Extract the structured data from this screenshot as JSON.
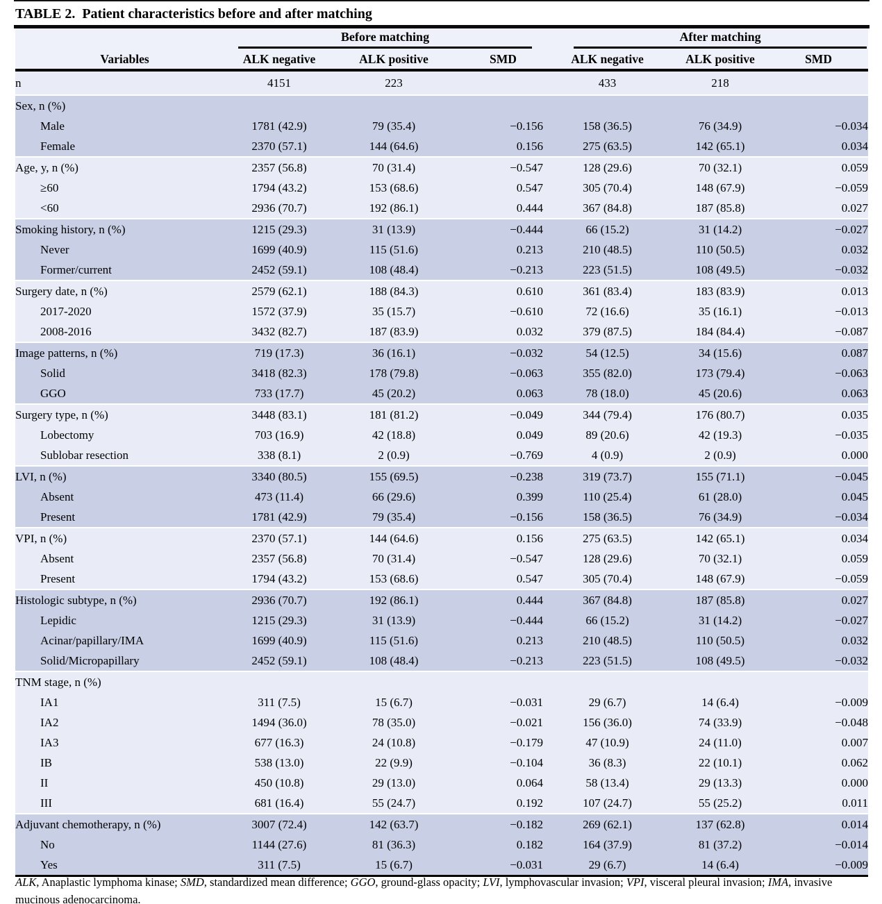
{
  "title": {
    "label": "TABLE 2.",
    "text": "Patient characteristics before and after matching"
  },
  "header": {
    "variables": "Variables",
    "group_before": "Before matching",
    "group_after": "After matching",
    "cols": [
      "ALK negative",
      "ALK positive",
      "SMD",
      "ALK negative",
      "ALK positive",
      "SMD"
    ]
  },
  "colors": {
    "band_dark": "#c9cfe5",
    "band_light": "#e9ecf6",
    "header_bg": "#eef1f9",
    "rule": "#000000"
  },
  "table": {
    "sections": [
      {
        "shade": "light",
        "rows": [
          {
            "label": "n",
            "indent": false,
            "values": [
              "4151",
              "223",
              "",
              "433",
              "218",
              ""
            ]
          }
        ]
      },
      {
        "shade": "dark",
        "rows": [
          {
            "label": "Sex, n (%)",
            "indent": false,
            "values": [
              "",
              "",
              "",
              "",
              "",
              ""
            ]
          },
          {
            "label": "Male",
            "indent": true,
            "values": [
              "1781 (42.9)",
              "79 (35.4)",
              "−0.156",
              "158 (36.5)",
              "76 (34.9)",
              "−0.034"
            ]
          },
          {
            "label": "Female",
            "indent": true,
            "values": [
              "2370 (57.1)",
              "144 (64.6)",
              "0.156",
              "275 (63.5)",
              "142 (65.1)",
              "0.034"
            ]
          }
        ]
      },
      {
        "shade": "light",
        "rows": [
          {
            "label": "Age, y, n (%)",
            "indent": false,
            "values": [
              "2357 (56.8)",
              "70 (31.4)",
              "−0.547",
              "128 (29.6)",
              "70 (32.1)",
              "0.059"
            ]
          },
          {
            "label": "≥60",
            "indent": true,
            "values": [
              "1794 (43.2)",
              "153 (68.6)",
              "0.547",
              "305 (70.4)",
              "148 (67.9)",
              "−0.059"
            ]
          },
          {
            "label": "<60",
            "indent": true,
            "values": [
              "2936 (70.7)",
              "192 (86.1)",
              "0.444",
              "367 (84.8)",
              "187 (85.8)",
              "0.027"
            ]
          }
        ]
      },
      {
        "shade": "dark",
        "rows": [
          {
            "label": "Smoking history, n (%)",
            "indent": false,
            "values": [
              "1215 (29.3)",
              "31 (13.9)",
              "−0.444",
              "66 (15.2)",
              "31 (14.2)",
              "−0.027"
            ]
          },
          {
            "label": "Never",
            "indent": true,
            "values": [
              "1699 (40.9)",
              "115 (51.6)",
              "0.213",
              "210 (48.5)",
              "110 (50.5)",
              "0.032"
            ]
          },
          {
            "label": "Former/current",
            "indent": true,
            "values": [
              "2452 (59.1)",
              "108 (48.4)",
              "−0.213",
              "223 (51.5)",
              "108 (49.5)",
              "−0.032"
            ]
          }
        ]
      },
      {
        "shade": "light",
        "rows": [
          {
            "label": "Surgery date, n (%)",
            "indent": false,
            "values": [
              "2579 (62.1)",
              "188 (84.3)",
              "0.610",
              "361 (83.4)",
              "183 (83.9)",
              "0.013"
            ]
          },
          {
            "label": "2017-2020",
            "indent": true,
            "values": [
              "1572 (37.9)",
              "35 (15.7)",
              "−0.610",
              "72 (16.6)",
              "35 (16.1)",
              "−0.013"
            ]
          },
          {
            "label": "2008-2016",
            "indent": true,
            "values": [
              "3432 (82.7)",
              "187 (83.9)",
              "0.032",
              "379 (87.5)",
              "184 (84.4)",
              "−0.087"
            ]
          }
        ]
      },
      {
        "shade": "dark",
        "rows": [
          {
            "label": "Image patterns, n (%)",
            "indent": false,
            "values": [
              "719 (17.3)",
              "36 (16.1)",
              "−0.032",
              "54 (12.5)",
              "34 (15.6)",
              "0.087"
            ]
          },
          {
            "label": "Solid",
            "indent": true,
            "values": [
              "3418 (82.3)",
              "178 (79.8)",
              "−0.063",
              "355 (82.0)",
              "173 (79.4)",
              "−0.063"
            ]
          },
          {
            "label": "GGO",
            "indent": true,
            "values": [
              "733 (17.7)",
              "45 (20.2)",
              "0.063",
              "78 (18.0)",
              "45 (20.6)",
              "0.063"
            ]
          }
        ]
      },
      {
        "shade": "light",
        "rows": [
          {
            "label": "Surgery type, n (%)",
            "indent": false,
            "values": [
              "3448 (83.1)",
              "181 (81.2)",
              "−0.049",
              "344 (79.4)",
              "176 (80.7)",
              "0.035"
            ]
          },
          {
            "label": "Lobectomy",
            "indent": true,
            "values": [
              "703 (16.9)",
              "42 (18.8)",
              "0.049",
              "89 (20.6)",
              "42 (19.3)",
              "−0.035"
            ]
          },
          {
            "label": "Sublobar resection",
            "indent": true,
            "values": [
              "338 (8.1)",
              "2 (0.9)",
              "−0.769",
              "4 (0.9)",
              "2 (0.9)",
              "0.000"
            ]
          }
        ]
      },
      {
        "shade": "dark",
        "rows": [
          {
            "label": "LVI, n (%)",
            "indent": false,
            "values": [
              "3340 (80.5)",
              "155 (69.5)",
              "−0.238",
              "319 (73.7)",
              "155 (71.1)",
              "−0.045"
            ]
          },
          {
            "label": "Absent",
            "indent": true,
            "values": [
              "473 (11.4)",
              "66 (29.6)",
              "0.399",
              "110 (25.4)",
              "61 (28.0)",
              "0.045"
            ]
          },
          {
            "label": "Present",
            "indent": true,
            "values": [
              "1781 (42.9)",
              "79 (35.4)",
              "−0.156",
              "158 (36.5)",
              "76 (34.9)",
              "−0.034"
            ]
          }
        ]
      },
      {
        "shade": "light",
        "rows": [
          {
            "label": "VPI, n (%)",
            "indent": false,
            "values": [
              "2370 (57.1)",
              "144 (64.6)",
              "0.156",
              "275 (63.5)",
              "142 (65.1)",
              "0.034"
            ]
          },
          {
            "label": "Absent",
            "indent": true,
            "values": [
              "2357 (56.8)",
              "70 (31.4)",
              "−0.547",
              "128 (29.6)",
              "70 (32.1)",
              "0.059"
            ]
          },
          {
            "label": "Present",
            "indent": true,
            "values": [
              "1794 (43.2)",
              "153 (68.6)",
              "0.547",
              "305 (70.4)",
              "148 (67.9)",
              "−0.059"
            ]
          }
        ]
      },
      {
        "shade": "dark",
        "rows": [
          {
            "label": "Histologic subtype, n (%)",
            "indent": false,
            "values": [
              "2936 (70.7)",
              "192 (86.1)",
              "0.444",
              "367 (84.8)",
              "187 (85.8)",
              "0.027"
            ]
          },
          {
            "label": "Lepidic",
            "indent": true,
            "values": [
              "1215 (29.3)",
              "31 (13.9)",
              "−0.444",
              "66 (15.2)",
              "31 (14.2)",
              "−0.027"
            ]
          },
          {
            "label": "Acinar/papillary/IMA",
            "indent": true,
            "values": [
              "1699 (40.9)",
              "115 (51.6)",
              "0.213",
              "210 (48.5)",
              "110 (50.5)",
              "0.032"
            ]
          },
          {
            "label": "Solid/Micropapillary",
            "indent": true,
            "values": [
              "2452 (59.1)",
              "108 (48.4)",
              "−0.213",
              "223 (51.5)",
              "108 (49.5)",
              "−0.032"
            ]
          }
        ]
      },
      {
        "shade": "light",
        "rows": [
          {
            "label": "TNM stage, n (%)",
            "indent": false,
            "values": [
              "",
              "",
              "",
              "",
              "",
              ""
            ]
          },
          {
            "label": "IA1",
            "indent": true,
            "values": [
              "311 (7.5)",
              "15 (6.7)",
              "−0.031",
              "29 (6.7)",
              "14 (6.4)",
              "−0.009"
            ]
          },
          {
            "label": "IA2",
            "indent": true,
            "values": [
              "1494 (36.0)",
              "78 (35.0)",
              "−0.021",
              "156 (36.0)",
              "74 (33.9)",
              "−0.048"
            ]
          },
          {
            "label": "IA3",
            "indent": true,
            "values": [
              "677 (16.3)",
              "24 (10.8)",
              "−0.179",
              "47 (10.9)",
              "24 (11.0)",
              "0.007"
            ]
          },
          {
            "label": "IB",
            "indent": true,
            "values": [
              "538 (13.0)",
              "22 (9.9)",
              "−0.104",
              "36 (8.3)",
              "22 (10.1)",
              "0.062"
            ]
          },
          {
            "label": "II",
            "indent": true,
            "values": [
              "450 (10.8)",
              "29 (13.0)",
              "0.064",
              "58 (13.4)",
              "29 (13.3)",
              "0.000"
            ]
          },
          {
            "label": "III",
            "indent": true,
            "values": [
              "681 (16.4)",
              "55 (24.7)",
              "0.192",
              "107 (24.7)",
              "55 (25.2)",
              "0.011"
            ]
          }
        ]
      },
      {
        "shade": "dark",
        "rows": [
          {
            "label": "Adjuvant chemotherapy, n (%)",
            "indent": false,
            "values": [
              "3007 (72.4)",
              "142 (63.7)",
              "−0.182",
              "269 (62.1)",
              "137 (62.8)",
              "0.014"
            ]
          },
          {
            "label": "No",
            "indent": true,
            "values": [
              "1144 (27.6)",
              "81 (36.3)",
              "0.182",
              "164 (37.9)",
              "81 (37.2)",
              "−0.014"
            ]
          },
          {
            "label": "Yes",
            "indent": true,
            "values": [
              "311 (7.5)",
              "15 (6.7)",
              "−0.031",
              "29 (6.7)",
              "14 (6.4)",
              "−0.009"
            ]
          }
        ]
      }
    ]
  },
  "footnote": {
    "segments": [
      {
        "text": "ALK",
        "italic": true
      },
      {
        "text": ", Anaplastic lymphoma kinase; ",
        "italic": false
      },
      {
        "text": "SMD",
        "italic": true
      },
      {
        "text": ", standardized mean difference; ",
        "italic": false
      },
      {
        "text": "GGO",
        "italic": true
      },
      {
        "text": ", ground-glass opacity; ",
        "italic": false
      },
      {
        "text": "LVI",
        "italic": true
      },
      {
        "text": ", lymphovascular invasion; ",
        "italic": false
      },
      {
        "text": "VPI",
        "italic": true
      },
      {
        "text": ", visceral pleural invasion; ",
        "italic": false
      },
      {
        "text": "IMA",
        "italic": true
      },
      {
        "text": ", invasive mucinous adenocarcinoma.",
        "italic": false
      }
    ]
  }
}
